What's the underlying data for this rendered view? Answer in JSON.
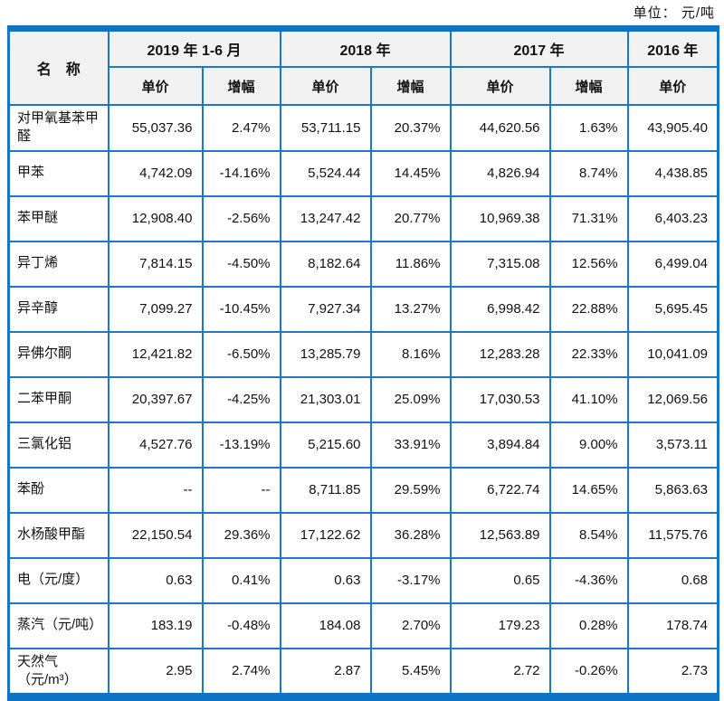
{
  "unit_note": "单位： 元/吨",
  "colors": {
    "border_blue": "#1a79c9",
    "band_blue": "#0f74c4",
    "header_bg": "#f2f2f2"
  },
  "table": {
    "name_header": "名　称",
    "col_groups": [
      {
        "label": "2019 年 1-6 月",
        "cols": [
          "单价",
          "增幅"
        ]
      },
      {
        "label": "2018 年",
        "cols": [
          "单价",
          "增幅"
        ]
      },
      {
        "label": "2017 年",
        "cols": [
          "单价",
          "增幅"
        ]
      },
      {
        "label": "2016 年",
        "cols": [
          "单价"
        ]
      }
    ],
    "rows": [
      {
        "name": "对甲氧基苯甲醛",
        "values": [
          "55,037.36",
          "2.47%",
          "53,711.15",
          "20.37%",
          "44,620.56",
          "1.63%",
          "43,905.40"
        ]
      },
      {
        "name": "甲苯",
        "values": [
          "4,742.09",
          "-14.16%",
          "5,524.44",
          "14.45%",
          "4,826.94",
          "8.74%",
          "4,438.85"
        ]
      },
      {
        "name": "苯甲醚",
        "values": [
          "12,908.40",
          "-2.56%",
          "13,247.42",
          "20.77%",
          "10,969.38",
          "71.31%",
          "6,403.23"
        ]
      },
      {
        "name": "异丁烯",
        "values": [
          "7,814.15",
          "-4.50%",
          "8,182.64",
          "11.86%",
          "7,315.08",
          "12.56%",
          "6,499.04"
        ]
      },
      {
        "name": "异辛醇",
        "values": [
          "7,099.27",
          "-10.45%",
          "7,927.34",
          "13.27%",
          "6,998.42",
          "22.88%",
          "5,695.45"
        ]
      },
      {
        "name": "异佛尔酮",
        "values": [
          "12,421.82",
          "-6.50%",
          "13,285.79",
          "8.16%",
          "12,283.28",
          "22.33%",
          "10,041.09"
        ]
      },
      {
        "name": "二苯甲酮",
        "values": [
          "20,397.67",
          "-4.25%",
          "21,303.01",
          "25.09%",
          "17,030.53",
          "41.10%",
          "12,069.56"
        ]
      },
      {
        "name": "三氯化铝",
        "values": [
          "4,527.76",
          "-13.19%",
          "5,215.60",
          "33.91%",
          "3,894.84",
          "9.00%",
          "3,573.11"
        ]
      },
      {
        "name": "苯酚",
        "values": [
          "--",
          "--",
          "8,711.85",
          "29.59%",
          "6,722.74",
          "14.65%",
          "5,863.63"
        ]
      },
      {
        "name": "水杨酸甲酯",
        "values": [
          "22,150.54",
          "29.36%",
          "17,122.62",
          "36.28%",
          "12,563.89",
          "8.54%",
          "11,575.76"
        ]
      },
      {
        "name": "电（元/度）",
        "values": [
          "0.63",
          "0.41%",
          "0.63",
          "-3.17%",
          "0.65",
          "-4.36%",
          "0.68"
        ]
      },
      {
        "name": "蒸汽（元/吨）",
        "values": [
          "183.19",
          "-0.48%",
          "184.08",
          "2.70%",
          "179.23",
          "0.28%",
          "178.74"
        ]
      },
      {
        "name": "天然气（元/m³）",
        "values": [
          "2.95",
          "2.74%",
          "2.87",
          "5.45%",
          "2.72",
          "-0.26%",
          "2.73"
        ]
      }
    ]
  }
}
